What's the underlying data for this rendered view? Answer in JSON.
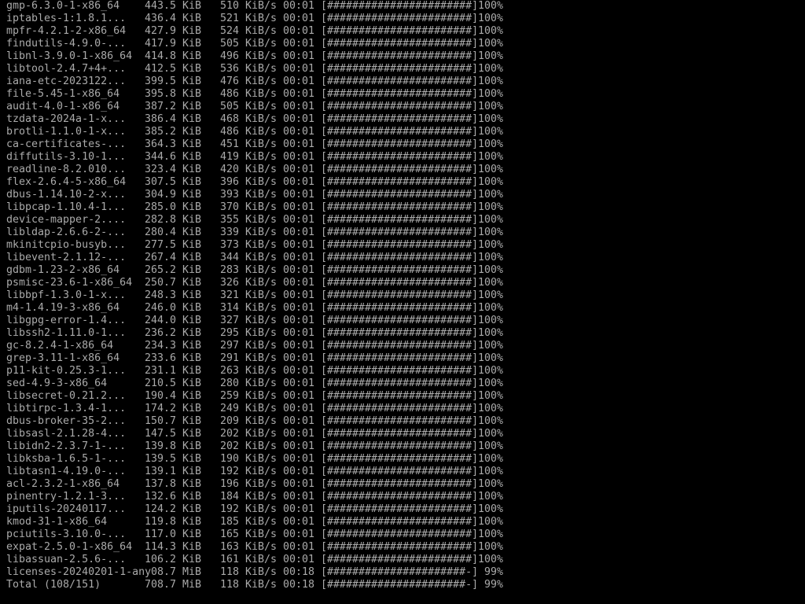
{
  "terminal": {
    "background": "#000000",
    "foreground": "#aaaaaa",
    "columns": [
      "name",
      "size",
      "speed",
      "eta",
      "progress_bar",
      "percent"
    ],
    "rows": [
      [
        "gmp-6.3.0-1-x86_64",
        "443.5 KiB",
        "510 KiB/s",
        "00:01",
        "[#######################]",
        "100%"
      ],
      [
        "iptables-1:1.8.1...",
        "436.4 KiB",
        "521 KiB/s",
        "00:01",
        "[#######################]",
        "100%"
      ],
      [
        "mpfr-4.2.1-2-x86_64",
        "427.9 KiB",
        "524 KiB/s",
        "00:01",
        "[#######################]",
        "100%"
      ],
      [
        "findutils-4.9.0-...",
        "417.9 KiB",
        "505 KiB/s",
        "00:01",
        "[#######################]",
        "100%"
      ],
      [
        "libnl-3.9.0-1-x86_64",
        "414.8 KiB",
        "496 KiB/s",
        "00:01",
        "[#######################]",
        "100%"
      ],
      [
        "libtool-2.4.7+4+...",
        "412.5 KiB",
        "536 KiB/s",
        "00:01",
        "[#######################]",
        "100%"
      ],
      [
        "iana-etc-2023122...",
        "399.5 KiB",
        "476 KiB/s",
        "00:01",
        "[#######################]",
        "100%"
      ],
      [
        "file-5.45-1-x86_64",
        "395.8 KiB",
        "486 KiB/s",
        "00:01",
        "[#######################]",
        "100%"
      ],
      [
        "audit-4.0-1-x86_64",
        "387.2 KiB",
        "505 KiB/s",
        "00:01",
        "[#######################]",
        "100%"
      ],
      [
        "tzdata-2024a-1-x...",
        "386.4 KiB",
        "468 KiB/s",
        "00:01",
        "[#######################]",
        "100%"
      ],
      [
        "brotli-1.1.0-1-x...",
        "385.2 KiB",
        "486 KiB/s",
        "00:01",
        "[#######################]",
        "100%"
      ],
      [
        "ca-certificates-...",
        "364.3 KiB",
        "451 KiB/s",
        "00:01",
        "[#######################]",
        "100%"
      ],
      [
        "diffutils-3.10-1...",
        "344.6 KiB",
        "419 KiB/s",
        "00:01",
        "[#######################]",
        "100%"
      ],
      [
        "readline-8.2.010...",
        "323.4 KiB",
        "420 KiB/s",
        "00:01",
        "[#######################]",
        "100%"
      ],
      [
        "flex-2.6.4-5-x86_64",
        "307.5 KiB",
        "396 KiB/s",
        "00:01",
        "[#######################]",
        "100%"
      ],
      [
        "dbus-1.14.10-2-x...",
        "304.9 KiB",
        "393 KiB/s",
        "00:01",
        "[#######################]",
        "100%"
      ],
      [
        "libpcap-1.10.4-1...",
        "285.0 KiB",
        "370 KiB/s",
        "00:01",
        "[#######################]",
        "100%"
      ],
      [
        "device-mapper-2....",
        "282.8 KiB",
        "355 KiB/s",
        "00:01",
        "[#######################]",
        "100%"
      ],
      [
        "libldap-2.6.6-2-...",
        "280.4 KiB",
        "339 KiB/s",
        "00:01",
        "[#######################]",
        "100%"
      ],
      [
        "mkinitcpio-busyb...",
        "277.5 KiB",
        "373 KiB/s",
        "00:01",
        "[#######################]",
        "100%"
      ],
      [
        "libevent-2.1.12-...",
        "267.4 KiB",
        "344 KiB/s",
        "00:01",
        "[#######################]",
        "100%"
      ],
      [
        "gdbm-1.23-2-x86_64",
        "265.2 KiB",
        "283 KiB/s",
        "00:01",
        "[#######################]",
        "100%"
      ],
      [
        "psmisc-23.6-1-x86_64",
        "250.7 KiB",
        "326 KiB/s",
        "00:01",
        "[#######################]",
        "100%"
      ],
      [
        "libbpf-1.3.0-1-x...",
        "248.3 KiB",
        "321 KiB/s",
        "00:01",
        "[#######################]",
        "100%"
      ],
      [
        "m4-1.4.19-3-x86_64",
        "246.0 KiB",
        "314 KiB/s",
        "00:01",
        "[#######################]",
        "100%"
      ],
      [
        "libgpg-error-1.4...",
        "244.0 KiB",
        "327 KiB/s",
        "00:01",
        "[#######################]",
        "100%"
      ],
      [
        "libssh2-1.11.0-1...",
        "236.2 KiB",
        "295 KiB/s",
        "00:01",
        "[#######################]",
        "100%"
      ],
      [
        "gc-8.2.4-1-x86_64",
        "234.3 KiB",
        "297 KiB/s",
        "00:01",
        "[#######################]",
        "100%"
      ],
      [
        "grep-3.11-1-x86_64",
        "233.6 KiB",
        "291 KiB/s",
        "00:01",
        "[#######################]",
        "100%"
      ],
      [
        "p11-kit-0.25.3-1...",
        "231.1 KiB",
        "263 KiB/s",
        "00:01",
        "[#######################]",
        "100%"
      ],
      [
        "sed-4.9-3-x86_64",
        "210.5 KiB",
        "280 KiB/s",
        "00:01",
        "[#######################]",
        "100%"
      ],
      [
        "libsecret-0.21.2...",
        "190.4 KiB",
        "259 KiB/s",
        "00:01",
        "[#######################]",
        "100%"
      ],
      [
        "libtirpc-1.3.4-1...",
        "174.2 KiB",
        "249 KiB/s",
        "00:01",
        "[#######################]",
        "100%"
      ],
      [
        "dbus-broker-35-2...",
        "150.7 KiB",
        "209 KiB/s",
        "00:01",
        "[#######################]",
        "100%"
      ],
      [
        "libsasl-2.1.28-4...",
        "147.5 KiB",
        "202 KiB/s",
        "00:01",
        "[#######################]",
        "100%"
      ],
      [
        "libidn2-2.3.7-1-...",
        "139.8 KiB",
        "202 KiB/s",
        "00:01",
        "[#######################]",
        "100%"
      ],
      [
        "libksba-1.6.5-1-...",
        "139.5 KiB",
        "190 KiB/s",
        "00:01",
        "[#######################]",
        "100%"
      ],
      [
        "libtasn1-4.19.0-...",
        "139.1 KiB",
        "192 KiB/s",
        "00:01",
        "[#######################]",
        "100%"
      ],
      [
        "acl-2.3.2-1-x86_64",
        "137.8 KiB",
        "196 KiB/s",
        "00:01",
        "[#######################]",
        "100%"
      ],
      [
        "pinentry-1.2.1-3...",
        "132.6 KiB",
        "184 KiB/s",
        "00:01",
        "[#######################]",
        "100%"
      ],
      [
        "iputils-20240117...",
        "124.2 KiB",
        "192 KiB/s",
        "00:01",
        "[#######################]",
        "100%"
      ],
      [
        "kmod-31-1-x86_64",
        "119.8 KiB",
        "185 KiB/s",
        "00:01",
        "[#######################]",
        "100%"
      ],
      [
        "pciutils-3.10.0-...",
        "117.0 KiB",
        "165 KiB/s",
        "00:01",
        "[#######################]",
        "100%"
      ],
      [
        "expat-2.5.0-1-x86_64",
        "114.3 KiB",
        "163 KiB/s",
        "00:01",
        "[#######################]",
        "100%"
      ],
      [
        "libassuan-2.5.6-...",
        "106.2 KiB",
        "161 KiB/s",
        "00:01",
        "[#######################]",
        "100%"
      ],
      [
        "licenses-20240201-1-any",
        "08.7 MiB",
        "118 KiB/s",
        "00:18",
        "[######################-]",
        "99%"
      ],
      [
        "Total (108/151)",
        "708.7 MiB",
        "118 KiB/s",
        "00:18",
        "[######################-]",
        "99%"
      ]
    ]
  }
}
